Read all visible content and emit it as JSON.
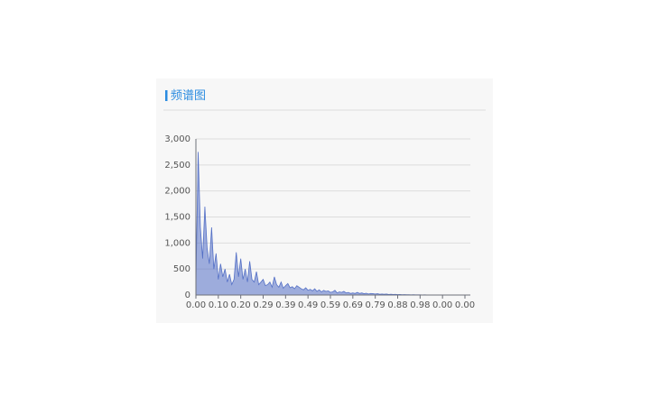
{
  "chart_data": {
    "type": "area",
    "title": "频谱图",
    "categories": [
      "0.00",
      null,
      null,
      null,
      null,
      null,
      null,
      null,
      null,
      null,
      "0.10",
      null,
      null,
      null,
      null,
      null,
      null,
      null,
      null,
      null,
      "0.20",
      null,
      null,
      null,
      null,
      null,
      null,
      null,
      null,
      null,
      "0.29",
      null,
      null,
      null,
      null,
      null,
      null,
      null,
      null,
      null,
      "0.39",
      null,
      null,
      null,
      null,
      null,
      null,
      null,
      null,
      null,
      "0.49",
      null,
      null,
      null,
      null,
      null,
      null,
      null,
      null,
      null,
      "0.59",
      null,
      null,
      null,
      null,
      null,
      null,
      null,
      null,
      null,
      "0.69",
      null,
      null,
      null,
      null,
      null,
      null,
      null,
      null,
      null,
      "0.79",
      null,
      null,
      null,
      null,
      null,
      null,
      null,
      null,
      null,
      "0.88",
      null,
      null,
      null,
      null,
      null,
      null,
      null,
      null,
      null,
      "0.98",
      null,
      null,
      null,
      null,
      null,
      null,
      null,
      null,
      null,
      "0.00",
      null,
      null,
      null,
      null,
      null,
      null,
      null,
      null,
      null,
      "0.00"
    ],
    "series": [
      {
        "color": "#5470c6",
        "values": [
          200,
          2750,
          1300,
          700,
          1700,
          900,
          600,
          1300,
          500,
          800,
          300,
          600,
          350,
          500,
          250,
          400,
          200,
          300,
          820,
          350,
          700,
          300,
          500,
          250,
          650,
          300,
          250,
          450,
          200,
          250,
          300,
          180,
          200,
          250,
          150,
          350,
          200,
          150,
          250,
          130,
          180,
          220,
          140,
          160,
          120,
          180,
          150,
          120,
          100,
          140,
          90,
          110,
          80,
          120,
          70,
          100,
          60,
          90,
          70,
          80,
          50,
          60,
          90,
          40,
          60,
          50,
          70,
          40,
          50,
          30,
          40,
          30,
          50,
          30,
          40,
          25,
          35,
          20,
          30,
          25,
          20,
          25,
          15,
          20,
          15,
          20,
          10,
          15,
          10,
          12,
          8,
          10,
          6,
          8,
          5,
          6,
          4,
          5,
          3,
          4,
          3,
          2,
          3,
          2,
          2,
          2,
          1,
          2,
          1,
          1,
          1,
          1,
          1,
          1,
          1,
          0,
          1,
          0,
          0,
          0,
          0
        ]
      }
    ],
    "ylim": [
      0,
      3000
    ],
    "yticks": [
      0,
      500,
      {
        "value": 1000,
        "label": "1,000"
      },
      {
        "value": 1500,
        "label": "1,500"
      },
      {
        "value": 2000,
        "label": "2,000"
      },
      {
        "value": 2500,
        "label": "2,500"
      },
      {
        "value": 3000,
        "label": "3,000"
      }
    ],
    "grid": true
  }
}
